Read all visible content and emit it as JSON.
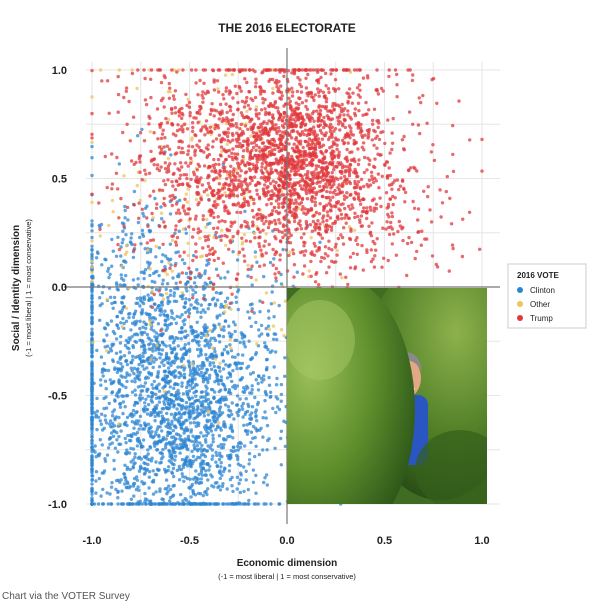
{
  "caption": "Chart via the VOTER Survey",
  "colors": {
    "Clinton": "#2e86d1",
    "Other": "#eec35a",
    "Trump": "#e0383c",
    "grid": "#e6e6e6",
    "axis": "#777777"
  },
  "chart_data": {
    "type": "scatter",
    "title": "THE 2016 ELECTORATE",
    "xlabel": "Economic dimension",
    "xlabel_sub": "(-1 = most liberal | 1 = most conservative)",
    "ylabel": "Social / Identity dimension",
    "ylabel_sub": "(-1 = most liberal | 1 = most conservative)",
    "xlim": [
      -1,
      1
    ],
    "ylim": [
      -1,
      1
    ],
    "x_ticks": [
      -1,
      -0.5,
      0,
      0.5,
      1
    ],
    "x_tick_labels": [
      "-1.0",
      "-0.5",
      "0.0",
      "0.5",
      "1.0"
    ],
    "y_ticks": [
      -1,
      -0.5,
      0,
      0.5,
      1
    ],
    "y_tick_labels": [
      "-1.0",
      "-0.5",
      "0.0",
      "0.5",
      "1.0"
    ],
    "grid": true,
    "legend": {
      "title": "2016 VOTE",
      "position": "right",
      "entries": [
        "Clinton",
        "Other",
        "Trump"
      ]
    },
    "series": [
      {
        "name": "Clinton",
        "clusters": [
          {
            "cx": -0.6,
            "cy": -0.6,
            "sx": 0.22,
            "sy": 0.28,
            "n": 1400
          },
          {
            "cx": -0.75,
            "cy": -0.15,
            "sx": 0.18,
            "sy": 0.3,
            "n": 500
          },
          {
            "cx": -0.3,
            "cy": -0.4,
            "sx": 0.2,
            "sy": 0.3,
            "n": 500
          },
          {
            "cx": -1.0,
            "cy": -0.45,
            "sx": 0.0,
            "sy": 0.35,
            "n": 160
          }
        ],
        "x": [
          -0.98,
          -0.72,
          -0.55,
          -0.4,
          -0.25,
          -0.62,
          -0.85
        ],
        "y": [
          -0.95,
          -0.78,
          -0.7,
          -0.55,
          -0.35,
          -0.2,
          0.1
        ]
      },
      {
        "name": "Trump",
        "clusters": [
          {
            "cx": 0.05,
            "cy": 0.58,
            "sx": 0.22,
            "sy": 0.22,
            "n": 1500
          },
          {
            "cx": -0.4,
            "cy": 0.55,
            "sx": 0.25,
            "sy": 0.25,
            "n": 700
          },
          {
            "cx": 0.35,
            "cy": 0.4,
            "sx": 0.25,
            "sy": 0.3,
            "n": 400
          }
        ],
        "x": [
          -0.95,
          -0.5,
          0.0,
          0.3,
          0.6,
          1.0
        ],
        "y": [
          0.95,
          0.85,
          0.9,
          0.7,
          0.45,
          0.68
        ]
      },
      {
        "name": "Other",
        "clusters": [
          {
            "cx": -0.35,
            "cy": 0.25,
            "sx": 0.35,
            "sy": 0.4,
            "n": 200
          }
        ],
        "x": [
          -0.6,
          -0.2,
          0.1
        ],
        "y": [
          0.9,
          0.1,
          -0.1
        ]
      }
    ]
  },
  "photo": {
    "subject": "man smiling among green shrubs",
    "x_range": [
      0,
      1
    ],
    "y_range": [
      -1,
      0
    ]
  }
}
